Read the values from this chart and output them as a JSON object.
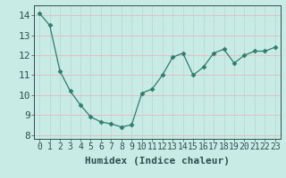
{
  "x": [
    0,
    1,
    2,
    3,
    4,
    5,
    6,
    7,
    8,
    9,
    10,
    11,
    12,
    13,
    14,
    15,
    16,
    17,
    18,
    19,
    20,
    21,
    22,
    23
  ],
  "y": [
    14.1,
    13.5,
    11.2,
    10.2,
    9.5,
    8.9,
    8.65,
    8.55,
    8.4,
    8.5,
    10.1,
    10.3,
    11.0,
    11.9,
    12.1,
    11.0,
    11.4,
    12.1,
    12.3,
    11.6,
    12.0,
    12.2,
    12.2,
    12.4
  ],
  "line_color": "#2e7d6e",
  "marker": "D",
  "marker_size": 2.5,
  "bg_color": "#c8ebe6",
  "grid_color_h": "#e8b8b8",
  "grid_color_v": "#b8d8d4",
  "xlabel": "Humidex (Indice chaleur)",
  "ylim": [
    7.8,
    14.5
  ],
  "xlim": [
    -0.5,
    23.5
  ],
  "yticks": [
    8,
    9,
    10,
    11,
    12,
    13,
    14
  ],
  "xticks": [
    0,
    1,
    2,
    3,
    4,
    5,
    6,
    7,
    8,
    9,
    10,
    11,
    12,
    13,
    14,
    15,
    16,
    17,
    18,
    19,
    20,
    21,
    22,
    23
  ],
  "xtick_labels": [
    "0",
    "1",
    "2",
    "3",
    "4",
    "5",
    "6",
    "7",
    "8",
    "9",
    "10",
    "11",
    "12",
    "13",
    "14",
    "15",
    "16",
    "17",
    "18",
    "19",
    "20",
    "21",
    "22",
    "23"
  ],
  "font_color": "#2d5050",
  "tick_fontsize": 7,
  "xlabel_fontsize": 8
}
